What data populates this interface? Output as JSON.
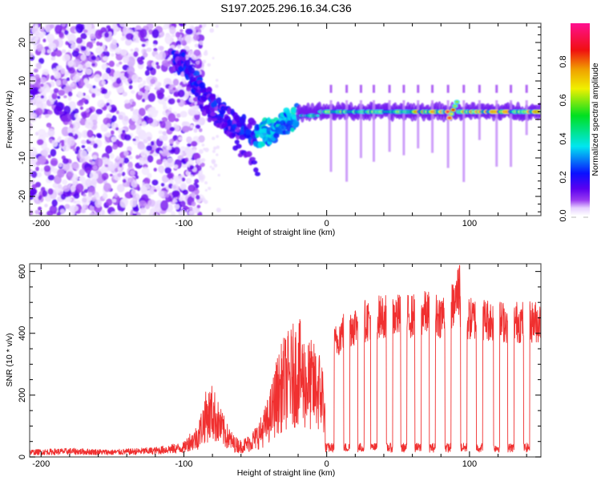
{
  "figure_title": "S197.2025.296.16.34.C36",
  "chart_data": [
    {
      "type": "heatmap",
      "title": "S197.2025.296.16.34.C36",
      "xlabel": "Height of straight line (km)",
      "ylabel": "Frequency (Hz)",
      "xlim": [
        -208,
        150
      ],
      "ylim": [
        -25,
        25
      ],
      "xticks": [
        -200,
        -100,
        0,
        100
      ],
      "xtick_labels": [
        "-200",
        "-100",
        "0",
        "100"
      ],
      "yticks": [
        -20,
        -10,
        0,
        10,
        20
      ],
      "ytick_labels": [
        "-20",
        "-10",
        "0",
        "10",
        "20"
      ],
      "colorbar": {
        "label": "Normalized spectral amplitude",
        "range": [
          0.0,
          1.0
        ],
        "ticks": [
          0.0,
          0.2,
          0.4,
          0.6,
          0.8
        ],
        "tick_labels": [
          "0.0",
          "0.2",
          "0.4",
          "0.6",
          "0.8"
        ],
        "colormap": [
          "#ffffff",
          "#e6d0ff",
          "#9a3cf0",
          "#5a00f0",
          "#0a10ff",
          "#00e6f0",
          "#00e020",
          "#f0f000",
          "#f0a000",
          "#f01010",
          "#ff1090"
        ]
      },
      "features": {
        "noise_region_x": [
          -208,
          -95
        ],
        "descending_track": [
          [
            -100,
            15
          ],
          [
            -90,
            8
          ],
          [
            -80,
            3
          ],
          [
            -70,
            0
          ],
          [
            -60,
            -2
          ],
          [
            -50,
            -4
          ],
          [
            -40,
            -3
          ],
          [
            -30,
            -1
          ],
          [
            -20,
            1
          ]
        ],
        "steady_track_freq_hz": 2,
        "steady_track_x": [
          -20,
          150
        ],
        "branch_track": [
          [
            -85,
            2
          ],
          [
            -70,
            -3
          ],
          [
            -60,
            -8
          ],
          [
            -48,
            -13
          ]
        ]
      },
      "grid": false
    },
    {
      "type": "line",
      "xlabel": "Height of straight line (km)",
      "ylabel": "SNR (10 * v/v)",
      "xlim": [
        -208,
        150
      ],
      "ylim": [
        0,
        625
      ],
      "xticks": [
        -200,
        -100,
        0,
        100
      ],
      "xtick_labels": [
        "-200",
        "-100",
        "0",
        "100"
      ],
      "yticks": [
        0,
        200,
        400,
        600
      ],
      "ytick_labels": [
        "0",
        "200",
        "400",
        "600"
      ],
      "color": "#f03030",
      "series": [
        {
          "name": "SNR",
          "x": [
            -208,
            -180,
            -150,
            -120,
            -100,
            -90,
            -85,
            -80,
            -75,
            -70,
            -65,
            -60,
            -55,
            -50,
            -45,
            -40,
            -35,
            -30,
            -25,
            -20,
            -15,
            -10,
            -5,
            -2,
            0,
            2,
            5,
            10,
            15,
            20,
            30,
            40,
            50,
            60,
            70,
            80,
            90,
            93,
            95,
            100,
            110,
            120,
            130,
            140,
            150
          ],
          "y": [
            15,
            18,
            15,
            20,
            30,
            80,
            150,
            170,
            120,
            80,
            50,
            40,
            50,
            70,
            100,
            150,
            230,
            280,
            300,
            330,
            280,
            270,
            250,
            220,
            10,
            300,
            380,
            420,
            440,
            450,
            470,
            480,
            480,
            480,
            490,
            480,
            520,
            600,
            460,
            470,
            470,
            460,
            460,
            460,
            460
          ]
        }
      ],
      "dropouts_x": [
        3,
        14,
        24,
        33,
        44,
        54,
        64,
        74,
        85,
        96,
        107,
        119,
        129,
        140
      ],
      "dropout_level": 30,
      "grid": false
    }
  ]
}
